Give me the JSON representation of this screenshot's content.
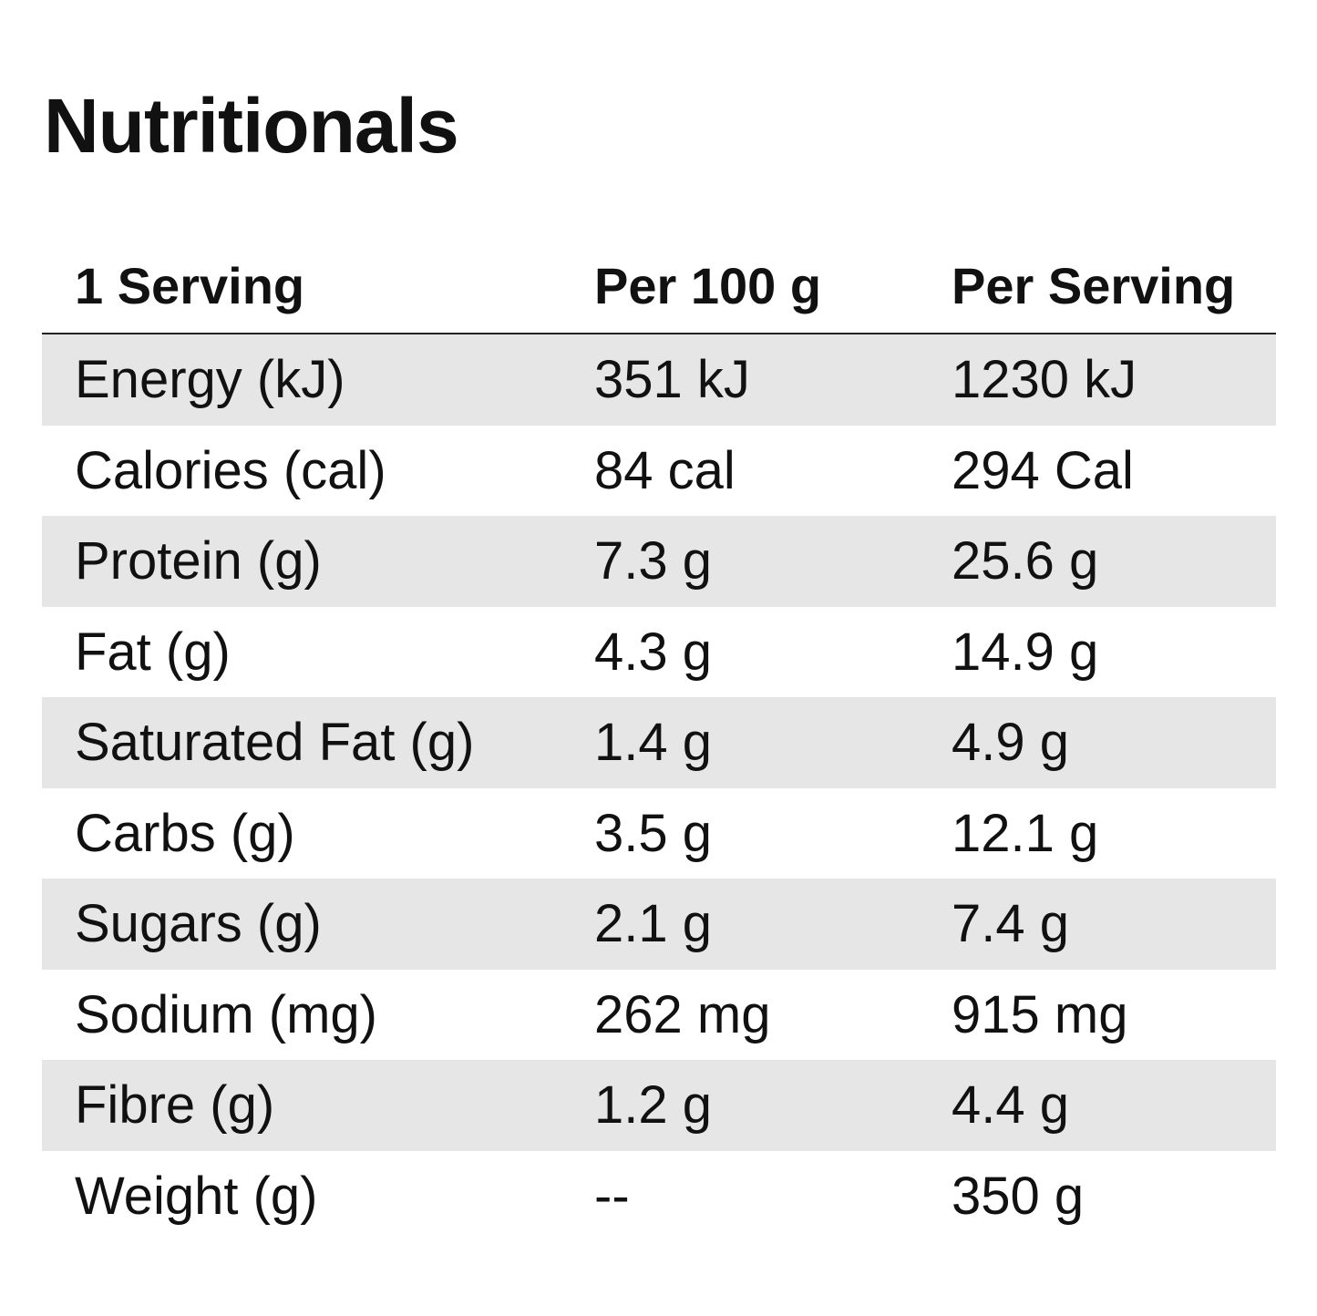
{
  "title": "Nutritionals",
  "columns": [
    "1 Serving",
    "Per 100 g",
    "Per Serving"
  ],
  "rows": [
    {
      "label": "Energy (kJ)",
      "per100": "351 kJ",
      "perServing": "1230 kJ"
    },
    {
      "label": "Calories (cal)",
      "per100": "84 cal",
      "perServing": "294 Cal"
    },
    {
      "label": "Protein (g)",
      "per100": "7.3 g",
      "perServing": "25.6 g"
    },
    {
      "label": "Fat (g)",
      "per100": "4.3 g",
      "perServing": "14.9 g"
    },
    {
      "label": "Saturated Fat (g)",
      "per100": "1.4 g",
      "perServing": "4.9 g"
    },
    {
      "label": "Carbs (g)",
      "per100": "3.5 g",
      "perServing": "12.1 g"
    },
    {
      "label": "Sugars (g)",
      "per100": "2.1 g",
      "perServing": "7.4 g"
    },
    {
      "label": "Sodium (mg)",
      "per100": "262 mg",
      "perServing": "915 mg"
    },
    {
      "label": "Fibre (g)",
      "per100": "1.2 g",
      "perServing": "4.4 g"
    },
    {
      "label": "Weight (g)",
      "per100": "--",
      "perServing": "350 g"
    }
  ],
  "colors": {
    "row_shade": "#e6e6e6",
    "text": "#111111",
    "divider": "#222222"
  }
}
